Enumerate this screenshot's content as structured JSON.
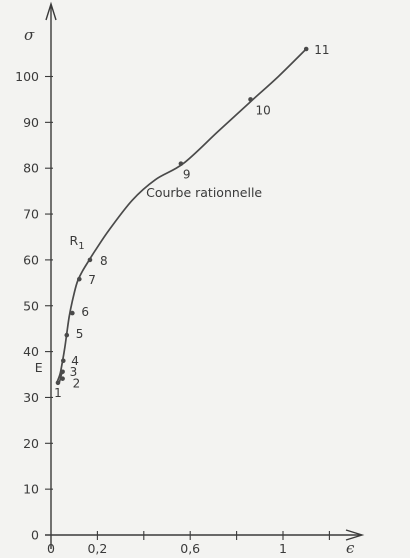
{
  "chart_data": {
    "type": "line",
    "title": "",
    "xlabel": "ϵ",
    "ylabel": "σ",
    "xlim": [
      0,
      1.3
    ],
    "ylim": [
      0,
      110
    ],
    "x_ticks": [
      {
        "value": 0,
        "label": "0"
      },
      {
        "value": 0.2,
        "label": "0,2"
      },
      {
        "value": 0.4,
        "label": ""
      },
      {
        "value": 0.6,
        "label": "0,6"
      },
      {
        "value": 0.8,
        "label": ""
      },
      {
        "value": 1.0,
        "label": "1"
      },
      {
        "value": 1.2,
        "label": ""
      }
    ],
    "y_ticks": [
      {
        "value": 0,
        "label": "0"
      },
      {
        "value": 10,
        "label": "10"
      },
      {
        "value": 20,
        "label": "20"
      },
      {
        "value": 30,
        "label": "30"
      },
      {
        "value": 40,
        "label": "40"
      },
      {
        "value": 50,
        "label": "50"
      },
      {
        "value": 60,
        "label": "60"
      },
      {
        "value": 70,
        "label": "70"
      },
      {
        "value": 80,
        "label": "80"
      },
      {
        "value": 90,
        "label": "90"
      },
      {
        "value": 100,
        "label": "100"
      }
    ],
    "curve": {
      "x": [
        0.055,
        0.045,
        0.04,
        0.035,
        0.028,
        0.032,
        0.04,
        0.05,
        0.06,
        0.068,
        0.078,
        0.092,
        0.112,
        0.135,
        0.165,
        0.19,
        0.25,
        0.35,
        0.45,
        0.57,
        0.72,
        0.86,
        0.98,
        1.1
      ],
      "y": [
        36,
        35,
        34,
        33.3,
        33.5,
        34.1,
        35.3,
        38,
        41,
        44,
        47.5,
        51,
        55,
        57.5,
        60,
        62,
        66.5,
        73,
        77.5,
        81,
        88,
        94.5,
        100,
        106
      ]
    },
    "points": [
      {
        "label": "1",
        "x": 0.03,
        "y": 33.2
      },
      {
        "label": "2",
        "x": 0.05,
        "y": 34.1
      },
      {
        "label": "3",
        "x": 0.05,
        "y": 35.6
      },
      {
        "label": "4",
        "x": 0.053,
        "y": 38
      },
      {
        "label": "5",
        "x": 0.068,
        "y": 43.6
      },
      {
        "label": "6",
        "x": 0.092,
        "y": 48.4
      },
      {
        "label": "7",
        "x": 0.122,
        "y": 55.8
      },
      {
        "label": "8",
        "x": 0.168,
        "y": 60
      },
      {
        "label": "9",
        "x": 0.56,
        "y": 81
      },
      {
        "label": "10",
        "x": 0.86,
        "y": 95
      },
      {
        "label": "11",
        "x": 1.1,
        "y": 106
      }
    ],
    "annotations": [
      {
        "text": "Courbe rationnelle",
        "x": 0.66,
        "y": 73.7
      },
      {
        "text": "R",
        "sub": "1",
        "x": 0.08,
        "y": 63.2
      },
      {
        "text": "E",
        "x": -0.07,
        "y": 35.6
      }
    ],
    "grid": false
  }
}
